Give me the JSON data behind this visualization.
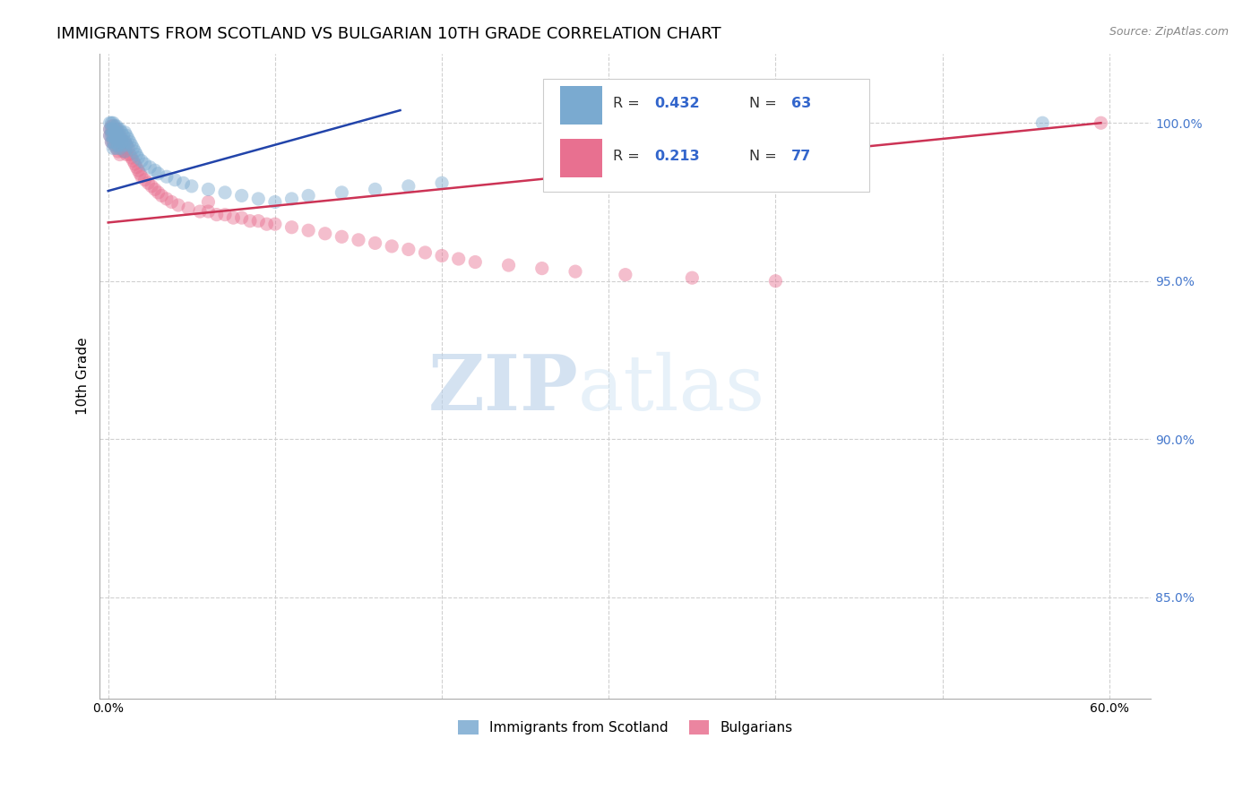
{
  "title": "IMMIGRANTS FROM SCOTLAND VS BULGARIAN 10TH GRADE CORRELATION CHART",
  "source": "Source: ZipAtlas.com",
  "ylabel": "10th Grade",
  "ytick_labels": [
    "85.0%",
    "90.0%",
    "95.0%",
    "100.0%"
  ],
  "ytick_values": [
    0.85,
    0.9,
    0.95,
    1.0
  ],
  "xlim": [
    -0.005,
    0.625
  ],
  "ylim": [
    0.818,
    1.022
  ],
  "xtick_vals": [
    0.0,
    0.1,
    0.2,
    0.3,
    0.4,
    0.5,
    0.6
  ],
  "xtick_labels": [
    "0.0%",
    "",
    "",
    "",
    "",
    "",
    "60.0%"
  ],
  "legend_r_scotland": "0.432",
  "legend_n_scotland": "63",
  "legend_r_bulgarian": "0.213",
  "legend_n_bulgarian": "77",
  "legend_label_scotland": "Immigrants from Scotland",
  "legend_label_bulgarian": "Bulgarians",
  "watermark_zip": "ZIP",
  "watermark_atlas": "atlas",
  "scotland_x": [
    0.001,
    0.001,
    0.001,
    0.002,
    0.002,
    0.002,
    0.002,
    0.003,
    0.003,
    0.003,
    0.003,
    0.003,
    0.004,
    0.004,
    0.004,
    0.004,
    0.005,
    0.005,
    0.005,
    0.005,
    0.006,
    0.006,
    0.006,
    0.007,
    0.007,
    0.007,
    0.008,
    0.008,
    0.009,
    0.009,
    0.01,
    0.01,
    0.01,
    0.011,
    0.011,
    0.012,
    0.013,
    0.014,
    0.015,
    0.016,
    0.017,
    0.018,
    0.02,
    0.022,
    0.025,
    0.028,
    0.03,
    0.035,
    0.04,
    0.045,
    0.05,
    0.06,
    0.07,
    0.08,
    0.09,
    0.1,
    0.11,
    0.12,
    0.14,
    0.16,
    0.18,
    0.2,
    0.56
  ],
  "scotland_y": [
    1.0,
    0.998,
    0.996,
    1.0,
    0.998,
    0.996,
    0.994,
    1.0,
    0.998,
    0.996,
    0.994,
    0.992,
    0.999,
    0.997,
    0.995,
    0.993,
    0.999,
    0.997,
    0.995,
    0.992,
    0.998,
    0.996,
    0.993,
    0.998,
    0.995,
    0.992,
    0.997,
    0.994,
    0.996,
    0.993,
    0.997,
    0.994,
    0.991,
    0.996,
    0.993,
    0.995,
    0.994,
    0.993,
    0.992,
    0.991,
    0.99,
    0.989,
    0.988,
    0.987,
    0.986,
    0.985,
    0.984,
    0.983,
    0.982,
    0.981,
    0.98,
    0.979,
    0.978,
    0.977,
    0.976,
    0.975,
    0.976,
    0.977,
    0.978,
    0.979,
    0.98,
    0.981,
    1.0
  ],
  "bulgarian_x": [
    0.001,
    0.001,
    0.002,
    0.002,
    0.002,
    0.003,
    0.003,
    0.003,
    0.004,
    0.004,
    0.004,
    0.005,
    0.005,
    0.005,
    0.006,
    0.006,
    0.006,
    0.007,
    0.007,
    0.007,
    0.008,
    0.008,
    0.009,
    0.009,
    0.01,
    0.01,
    0.011,
    0.011,
    0.012,
    0.013,
    0.014,
    0.015,
    0.016,
    0.017,
    0.018,
    0.019,
    0.02,
    0.022,
    0.024,
    0.026,
    0.028,
    0.03,
    0.032,
    0.035,
    0.038,
    0.042,
    0.048,
    0.055,
    0.06,
    0.065,
    0.07,
    0.075,
    0.08,
    0.085,
    0.09,
    0.095,
    0.1,
    0.11,
    0.12,
    0.13,
    0.14,
    0.15,
    0.16,
    0.17,
    0.18,
    0.19,
    0.2,
    0.21,
    0.22,
    0.24,
    0.26,
    0.28,
    0.31,
    0.35,
    0.4,
    0.06,
    0.595
  ],
  "bulgarian_y": [
    0.998,
    0.996,
    0.999,
    0.997,
    0.994,
    0.999,
    0.997,
    0.994,
    0.998,
    0.996,
    0.993,
    0.998,
    0.995,
    0.992,
    0.997,
    0.994,
    0.991,
    0.996,
    0.993,
    0.99,
    0.995,
    0.992,
    0.994,
    0.991,
    0.994,
    0.991,
    0.993,
    0.99,
    0.992,
    0.99,
    0.989,
    0.988,
    0.987,
    0.986,
    0.985,
    0.984,
    0.983,
    0.982,
    0.981,
    0.98,
    0.979,
    0.978,
    0.977,
    0.976,
    0.975,
    0.974,
    0.973,
    0.972,
    0.972,
    0.971,
    0.971,
    0.97,
    0.97,
    0.969,
    0.969,
    0.968,
    0.968,
    0.967,
    0.966,
    0.965,
    0.964,
    0.963,
    0.962,
    0.961,
    0.96,
    0.959,
    0.958,
    0.957,
    0.956,
    0.955,
    0.954,
    0.953,
    0.952,
    0.951,
    0.95,
    0.975,
    1.0
  ],
  "scotland_line_x": [
    0.0,
    0.175
  ],
  "scotland_line_y": [
    0.9785,
    1.004
  ],
  "bulgarian_line_x": [
    0.0,
    0.595
  ],
  "bulgarian_line_y": [
    0.9685,
    1.0
  ],
  "scatter_alpha": 0.45,
  "scatter_size": 120,
  "line_color_scotland": "#2244aa",
  "line_color_bulgarian": "#cc3355",
  "scatter_color_scotland": "#7aaad0",
  "scatter_color_bulgarian": "#e87090",
  "grid_color": "#d0d0d0",
  "background_color": "#ffffff",
  "title_fontsize": 13,
  "axis_label_fontsize": 11,
  "tick_fontsize": 10,
  "legend_fontsize": 11,
  "source_fontsize": 9
}
